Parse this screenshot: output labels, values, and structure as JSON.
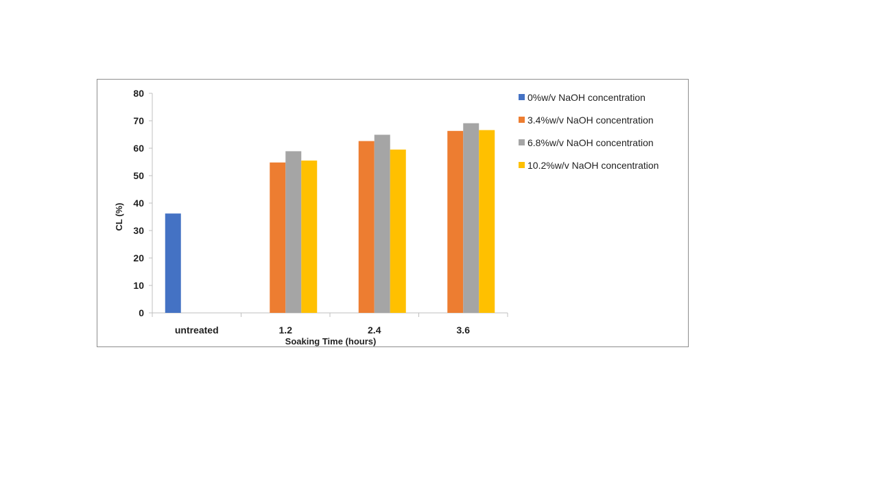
{
  "chart_data": {
    "type": "bar",
    "categories": [
      "untreated",
      "1.2",
      "2.4",
      "3.6"
    ],
    "series": [
      {
        "name": "0%w/v NaOH concentration",
        "color": "#4472C4",
        "values": [
          36.2,
          null,
          null,
          null
        ]
      },
      {
        "name": "3.4%w/v NaOH concentration",
        "color": "#ED7D31",
        "values": [
          null,
          54.8,
          62.6,
          66.3
        ]
      },
      {
        "name": "6.8%w/v NaOH concentration",
        "color": "#A5A5A5",
        "values": [
          null,
          58.9,
          64.9,
          69.1
        ]
      },
      {
        "name": "10.2%w/v NaOH concentration",
        "color": "#FFC000",
        "values": [
          null,
          55.5,
          59.5,
          66.6
        ]
      }
    ],
    "xlabel": "Soaking Time (hours)",
    "ylabel": "CL (%)",
    "ylim": [
      0,
      80
    ],
    "yticks": [
      "0",
      "10",
      "20",
      "30",
      "40",
      "50",
      "60",
      "70",
      "80"
    ],
    "grid": false,
    "legend_position": "right"
  }
}
